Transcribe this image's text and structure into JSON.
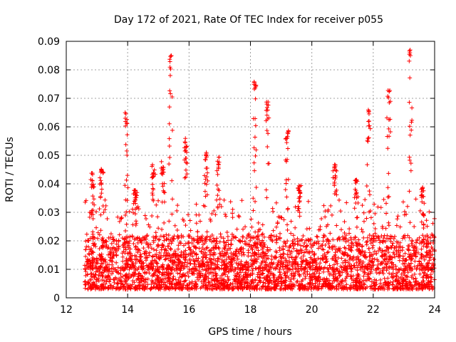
{
  "chart_data": {
    "type": "scatter",
    "title": "Day 172 of 2021, Rate Of TEC Index for receiver p055",
    "xlabel": "GPS time / hours",
    "ylabel": "ROTI / TECUs",
    "xlim": [
      12,
      24
    ],
    "ylim": [
      0,
      0.09
    ],
    "x_ticks": [
      12,
      14,
      16,
      18,
      20,
      22,
      24
    ],
    "x_tick_labels": [
      "12",
      "14",
      "16",
      "18",
      "20",
      "22",
      "24"
    ],
    "y_ticks": [
      0,
      0.01,
      0.02,
      0.03,
      0.04,
      0.05,
      0.06,
      0.07,
      0.08,
      0.09
    ],
    "y_tick_labels": [
      "0",
      "0.01",
      "0.02",
      "0.03",
      "0.04",
      "0.05",
      "0.06",
      "0.07",
      "0.08",
      "0.09"
    ],
    "grid": true,
    "marker": "plus",
    "color": "#ff0000",
    "data_start_hour": 12.6,
    "bands": [
      {
        "x": [
          12.6,
          24.0
        ],
        "y": [
          0.003,
          0.022
        ]
      },
      {
        "x": [
          12.6,
          24.0
        ],
        "y": [
          0.01,
          0.035
        ]
      }
    ],
    "spikes": [
      {
        "x": 12.85,
        "y": [
          0.025,
          0.044
        ]
      },
      {
        "x": 13.15,
        "y": [
          0.03,
          0.048
        ]
      },
      {
        "x": 13.95,
        "y": [
          0.02,
          0.066
        ]
      },
      {
        "x": 14.25,
        "y": [
          0.03,
          0.038
        ]
      },
      {
        "x": 14.85,
        "y": [
          0.03,
          0.047
        ]
      },
      {
        "x": 15.15,
        "y": [
          0.03,
          0.048
        ]
      },
      {
        "x": 15.4,
        "y": [
          0.035,
          0.085
        ]
      },
      {
        "x": 15.9,
        "y": [
          0.04,
          0.056
        ]
      },
      {
        "x": 16.55,
        "y": [
          0.035,
          0.051
        ]
      },
      {
        "x": 16.95,
        "y": [
          0.03,
          0.05
        ]
      },
      {
        "x": 18.15,
        "y": [
          0.03,
          0.076
        ]
      },
      {
        "x": 18.55,
        "y": [
          0.035,
          0.069
        ]
      },
      {
        "x": 19.2,
        "y": [
          0.035,
          0.06
        ]
      },
      {
        "x": 19.6,
        "y": [
          0.03,
          0.04
        ]
      },
      {
        "x": 20.75,
        "y": [
          0.03,
          0.048
        ]
      },
      {
        "x": 21.45,
        "y": [
          0.03,
          0.042
        ]
      },
      {
        "x": 21.85,
        "y": [
          0.03,
          0.066
        ]
      },
      {
        "x": 22.5,
        "y": [
          0.035,
          0.073
        ]
      },
      {
        "x": 23.2,
        "y": [
          0.035,
          0.088
        ]
      },
      {
        "x": 23.6,
        "y": [
          0.025,
          0.039
        ]
      }
    ]
  }
}
